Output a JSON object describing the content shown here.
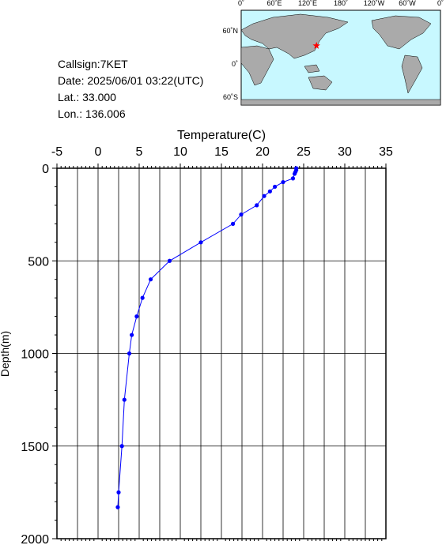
{
  "info": {
    "callsign": "Callsign:7KET",
    "date": "Date:  2025/06/01 03:22(UTC)",
    "lat": "Lat.:  33.000",
    "lon": "Lon.:  136.006"
  },
  "map": {
    "lon_labels": [
      "0˚",
      "60˚E",
      "120˚E",
      "180˚",
      "120˚W",
      "60˚W",
      "0˚"
    ],
    "lat_labels": [
      "60˚N",
      "0˚",
      "60˚S"
    ],
    "station_lat": 33.0,
    "station_lon": 136.006,
    "station_color": "#ff0000"
  },
  "chart_data": {
    "type": "line",
    "x_label": "Temperature(C)",
    "y_label": "Depth(m)",
    "color": "#0000ff",
    "x": [
      24.1,
      24.1,
      24.0,
      23.9,
      23.7,
      22.5,
      21.5,
      20.9,
      20.2,
      19.3,
      17.4,
      16.4,
      12.5,
      8.7,
      6.4,
      5.4,
      4.7,
      4.1,
      3.8,
      3.2,
      2.9,
      2.5,
      2.4
    ],
    "y": [
      0,
      10,
      20,
      30,
      55,
      75,
      100,
      125,
      150,
      200,
      250,
      300,
      400,
      500,
      600,
      700,
      800,
      900,
      1000,
      1250,
      1500,
      1750,
      1830
    ],
    "xlim": [
      -5,
      35
    ],
    "xticks": [
      -5,
      0,
      5,
      10,
      15,
      20,
      25,
      30,
      35
    ],
    "ylim": [
      0,
      2000
    ],
    "yticks": [
      0,
      500,
      1000,
      1500,
      2000
    ],
    "y_inverted": true,
    "grid": true
  }
}
